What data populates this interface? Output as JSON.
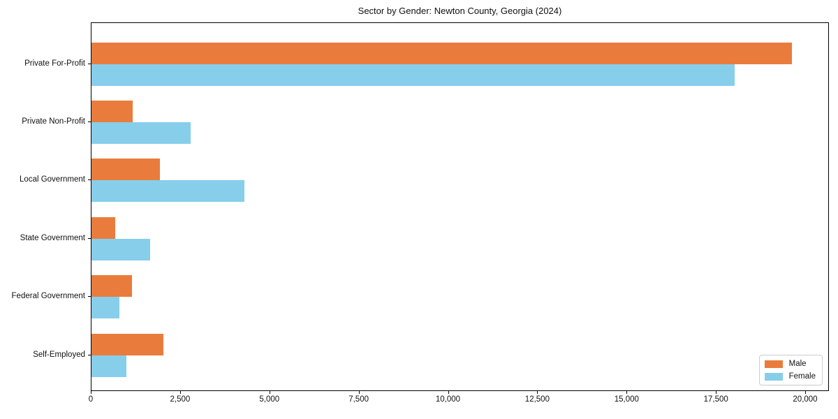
{
  "chart_data": {
    "type": "bar",
    "orientation": "horizontal",
    "title": "Sector by Gender: Newton County, Georgia (2024)",
    "categories": [
      "Private For-Profit",
      "Private Non-Profit",
      "Local Government",
      "State Government",
      "Federal Government",
      "Self-Employed"
    ],
    "series": [
      {
        "name": "Male",
        "color": "#e97c3c",
        "values": [
          19600,
          1150,
          1920,
          660,
          1130,
          2010
        ]
      },
      {
        "name": "Female",
        "color": "#87ceeb",
        "values": [
          18000,
          2780,
          4290,
          1650,
          780,
          980
        ]
      }
    ],
    "xlabel": "",
    "ylabel": "",
    "xlim": [
      0,
      20625
    ],
    "xticks": [
      0,
      2500,
      5000,
      7500,
      10000,
      12500,
      15000,
      17500,
      20000
    ],
    "xtick_labels": [
      "0",
      "2,500",
      "5,000",
      "7,500",
      "10,000",
      "12,500",
      "15,000",
      "17,500",
      "20,000"
    ],
    "grid": false,
    "legend": {
      "position": "lower-right"
    },
    "axes_border_color": "#000000",
    "background_color": "#ffffff"
  }
}
